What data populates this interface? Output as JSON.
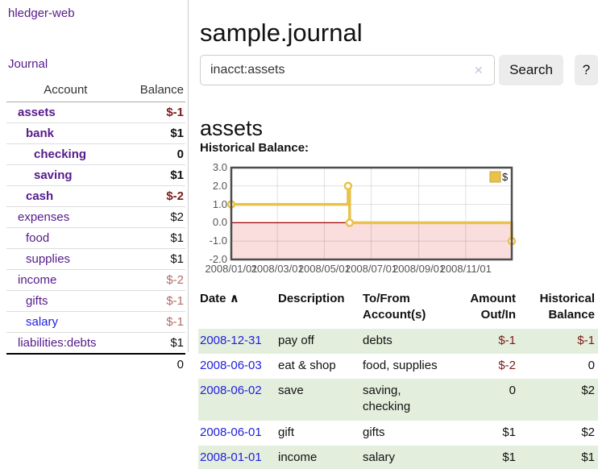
{
  "app": {
    "title": "hledger-web"
  },
  "sidebar": {
    "journal_label": "Journal",
    "accounts_table": {
      "headers": {
        "account": "Account",
        "balance": "Balance"
      },
      "rows": [
        {
          "name": "assets",
          "balance": "$-1",
          "depth": 1,
          "bold": true,
          "negative": true,
          "link": "visited"
        },
        {
          "name": "bank",
          "balance": "$1",
          "depth": 2,
          "bold": true,
          "negative": false,
          "link": "visited"
        },
        {
          "name": "checking",
          "balance": "0",
          "depth": 3,
          "bold": true,
          "negative": false,
          "link": "visited"
        },
        {
          "name": "saving",
          "balance": "$1",
          "depth": 3,
          "bold": true,
          "negative": false,
          "link": "visited"
        },
        {
          "name": "cash",
          "balance": "$-2",
          "depth": 2,
          "bold": true,
          "negative": true,
          "link": "visited"
        },
        {
          "name": "expenses",
          "balance": "$2",
          "depth": 1,
          "bold": false,
          "negative": false,
          "link": "visited"
        },
        {
          "name": "food",
          "balance": "$1",
          "depth": 2,
          "bold": false,
          "negative": false,
          "link": "visited"
        },
        {
          "name": "supplies",
          "balance": "$1",
          "depth": 2,
          "bold": false,
          "negative": false,
          "link": "visited"
        },
        {
          "name": "income",
          "balance": "$-2",
          "depth": 1,
          "bold": false,
          "negative": true,
          "link": "visited"
        },
        {
          "name": "gifts",
          "balance": "$-1",
          "depth": 2,
          "bold": false,
          "negative": true,
          "link": "visited"
        },
        {
          "name": "salary",
          "balance": "$-1",
          "depth": 2,
          "bold": false,
          "negative": true,
          "link": "unvisited"
        },
        {
          "name": "liabilities:debts",
          "balance": "$1",
          "depth": 1,
          "bold": false,
          "negative": false,
          "link": "visited"
        }
      ],
      "total": "0"
    }
  },
  "header": {
    "title": "sample.journal"
  },
  "search": {
    "value": "inacct:assets",
    "clear_icon": "✕",
    "button_label": "Search",
    "help_label": "?"
  },
  "account_page": {
    "heading": "assets",
    "chart_label": "Historical Balance:"
  },
  "chart_data": {
    "type": "line",
    "title": "Historical Balance",
    "style": "step",
    "series": [
      {
        "name": "$",
        "color": "#E9C24A",
        "points": [
          [
            "2008-01-01",
            1.0
          ],
          [
            "2008-06-01",
            2.0
          ],
          [
            "2008-06-03",
            0.0
          ],
          [
            "2008-12-31",
            -1.0
          ]
        ]
      }
    ],
    "x_range": [
      "2008-01-01",
      "2008-12-31"
    ],
    "ylim": [
      -2.0,
      3.0
    ],
    "y_ticks": [
      {
        "value": 3.0,
        "label": "3.0"
      },
      {
        "value": 2.0,
        "label": "2.0"
      },
      {
        "value": 1.0,
        "label": "1.0"
      },
      {
        "value": 0.0,
        "label": "0.0"
      },
      {
        "value": -1.0,
        "label": "-1.0"
      },
      {
        "value": -2.0,
        "label": "-2.0"
      }
    ],
    "x_ticks": [
      {
        "date": "2008-01-01",
        "label": "2008/01/01"
      },
      {
        "date": "2008-03-01",
        "label": "2008/03/01"
      },
      {
        "date": "2008-05-01",
        "label": "2008/05/01"
      },
      {
        "date": "2008-07-01",
        "label": "2008/07/01"
      },
      {
        "date": "2008-09-01",
        "label": "2008/09/01"
      },
      {
        "date": "2008-11-01",
        "label": "2008/11/01"
      }
    ],
    "grid": true,
    "legend_position": "top-right",
    "negative_area_color": "#fadddd",
    "zero_line_color": "#9e0000",
    "border_color": "#4d4d4d"
  },
  "register_table": {
    "headers": [
      {
        "label": "Date",
        "sort_icon": "∧"
      },
      {
        "label": "Description"
      },
      {
        "label": "To/From Account(s)"
      },
      {
        "label": "Amount Out/In"
      },
      {
        "label": "Historical Balance"
      }
    ],
    "rows": [
      {
        "date": "2008-12-31",
        "description": "pay off",
        "accounts": "debts",
        "amount": "$-1",
        "balance": "$-1",
        "amount_negative": true,
        "balance_negative": true
      },
      {
        "date": "2008-06-03",
        "description": "eat & shop",
        "accounts": "food, supplies",
        "amount": "$-2",
        "balance": "0",
        "amount_negative": true,
        "balance_negative": false
      },
      {
        "date": "2008-06-02",
        "description": "save",
        "accounts": "saving, checking",
        "amount": "0",
        "balance": "$2",
        "amount_negative": false,
        "balance_negative": false
      },
      {
        "date": "2008-06-01",
        "description": "gift",
        "accounts": "gifts",
        "amount": "$1",
        "balance": "$2",
        "amount_negative": false,
        "balance_negative": false
      },
      {
        "date": "2008-01-01",
        "description": "income",
        "accounts": "salary",
        "amount": "$1",
        "balance": "$1",
        "amount_negative": false,
        "balance_negative": false
      }
    ]
  }
}
